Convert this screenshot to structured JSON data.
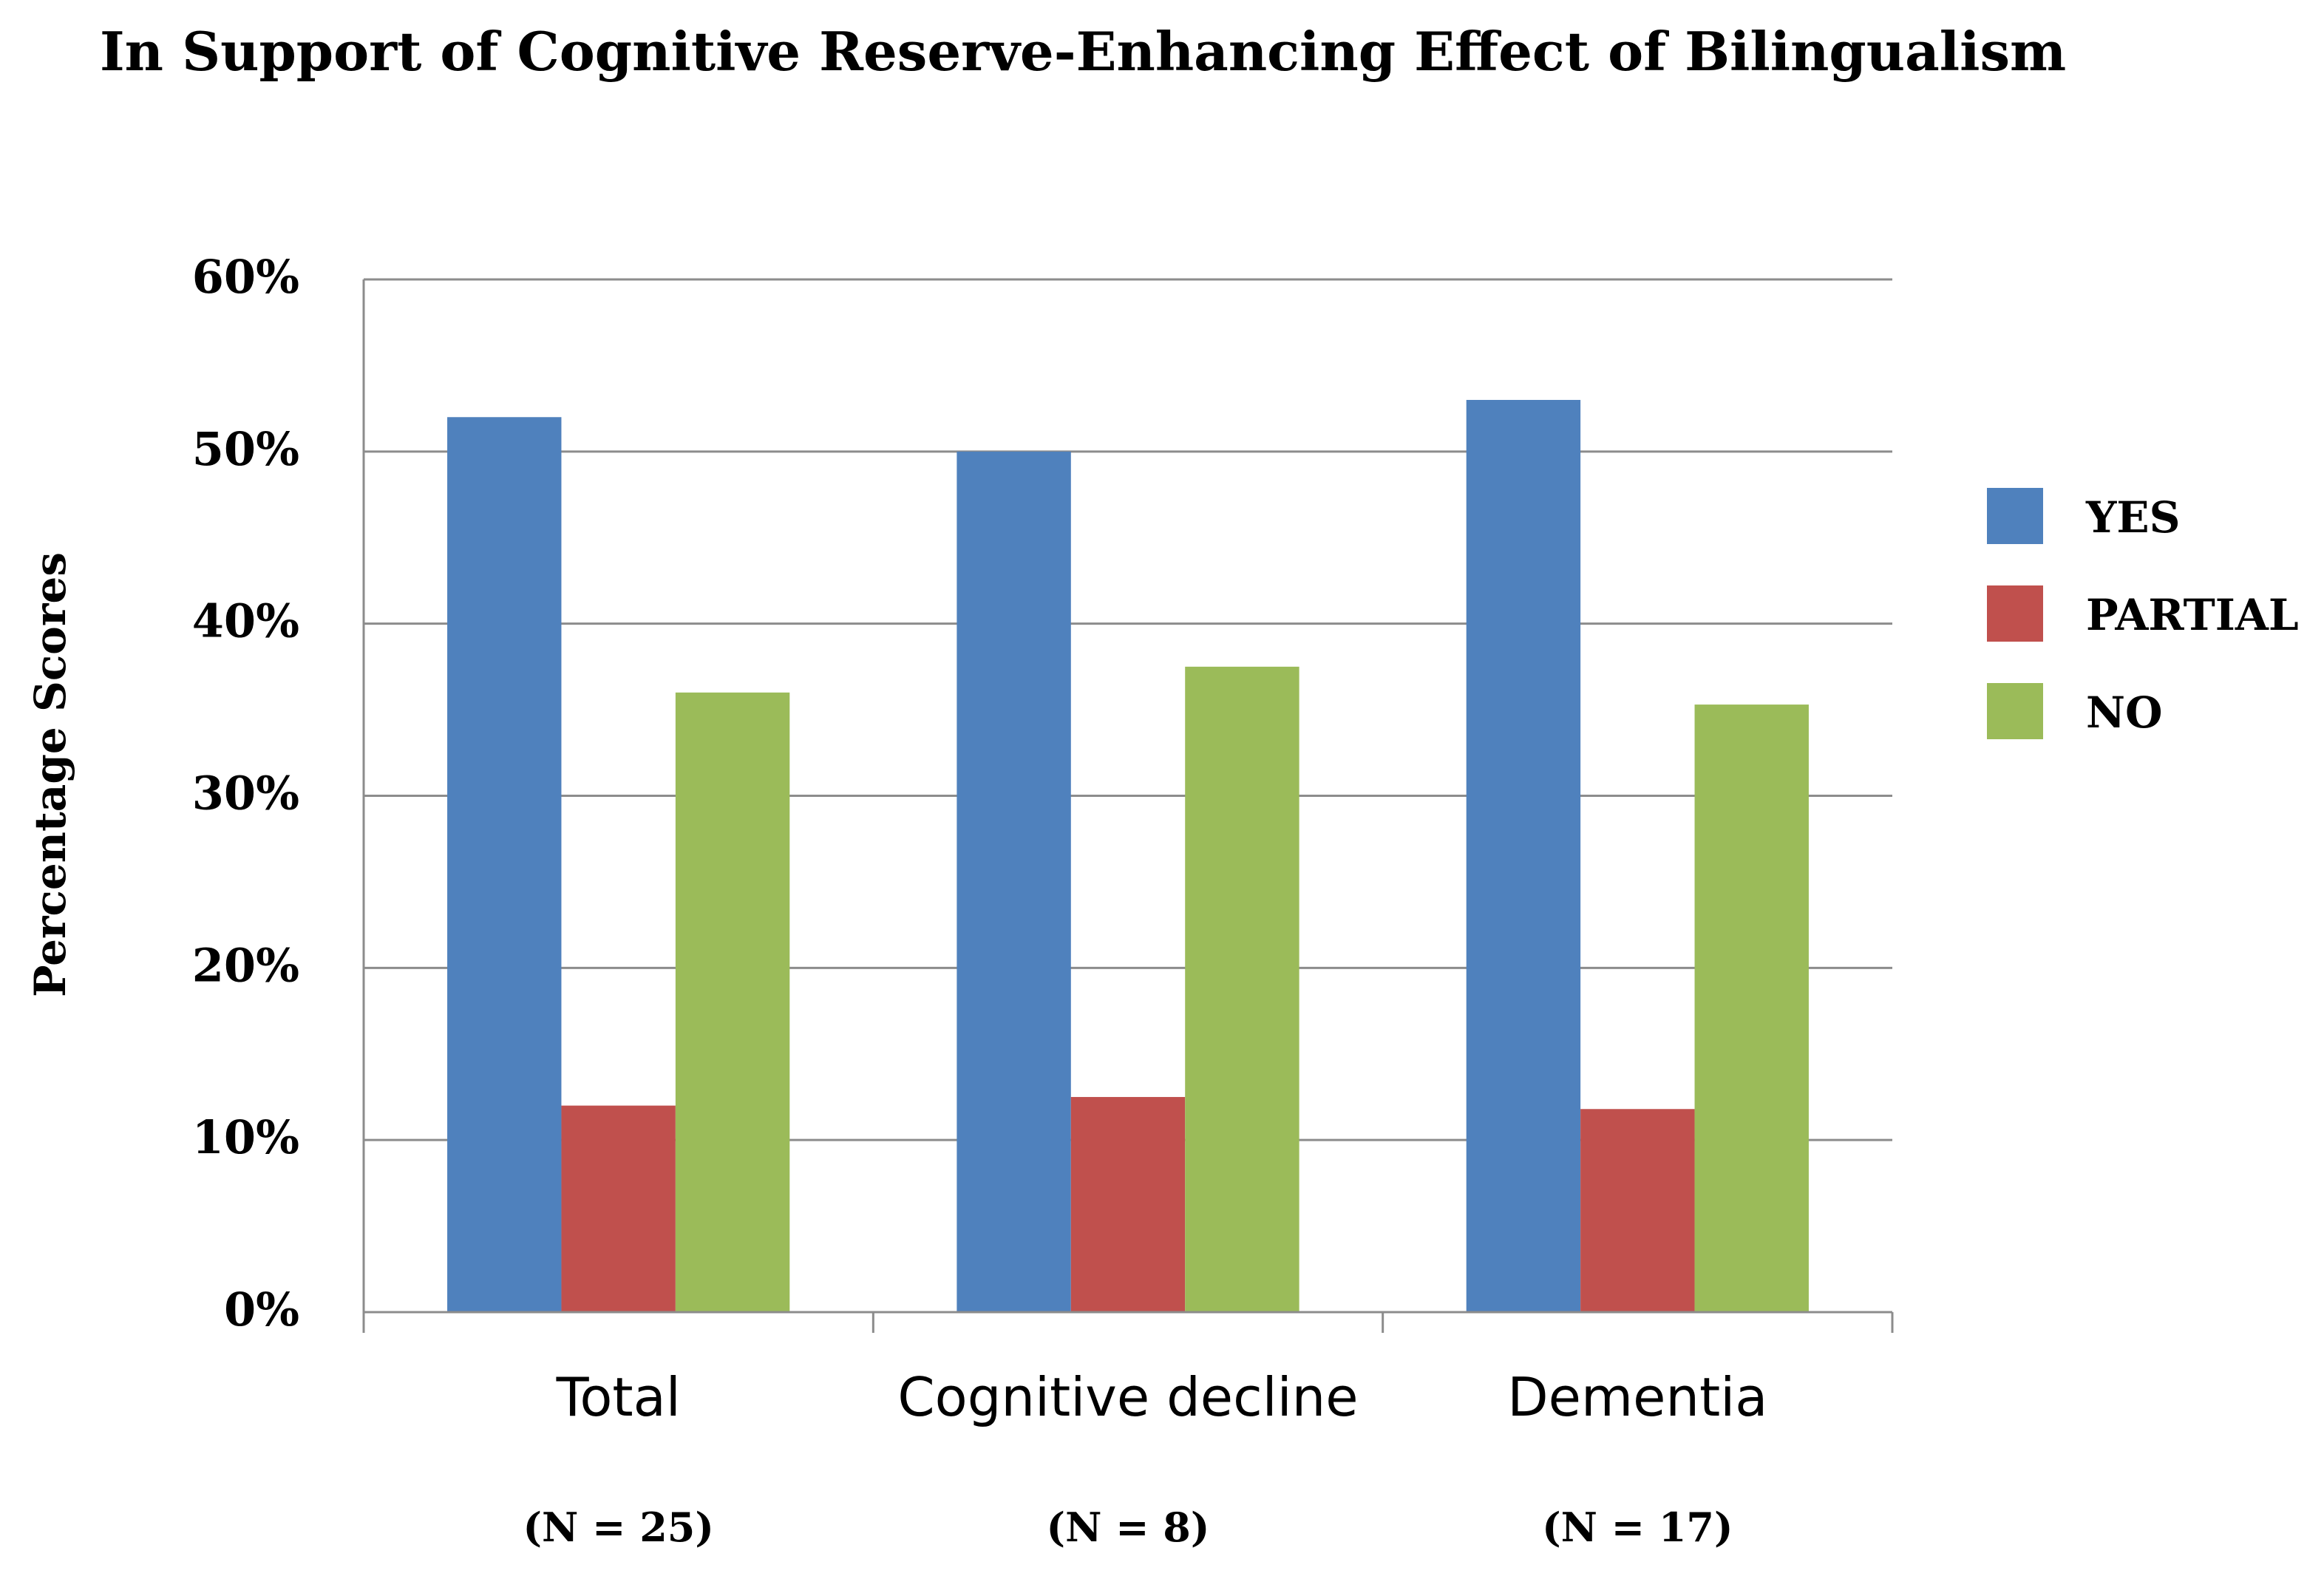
{
  "chart_data": {
    "type": "bar",
    "title": "In Support of Cognitive Reserve-Enhancing Effect of Bilingualism",
    "xlabel": "",
    "ylabel": "Percentage Scores",
    "categories": [
      "Total",
      "Cognitive decline",
      "Dementia"
    ],
    "category_notes": [
      "(N = 25)",
      "(N = 8)",
      "(N = 17)"
    ],
    "series": [
      {
        "name": "YES",
        "color": "#4f81bd",
        "values": [
          52,
          50,
          53
        ]
      },
      {
        "name": "PARTIAL",
        "color": "#c0504d",
        "values": [
          12,
          12.5,
          11.8
        ]
      },
      {
        "name": "NO",
        "color": "#9bbb59",
        "values": [
          36,
          37.5,
          35.3
        ]
      }
    ],
    "ylim": [
      0,
      60
    ],
    "yticks": [
      0,
      10,
      20,
      30,
      40,
      50,
      60
    ],
    "ytick_labels": [
      "0%",
      "10%",
      "20%",
      "30%",
      "40%",
      "50%",
      "60%"
    ],
    "grid": true,
    "legend_position": "right"
  }
}
